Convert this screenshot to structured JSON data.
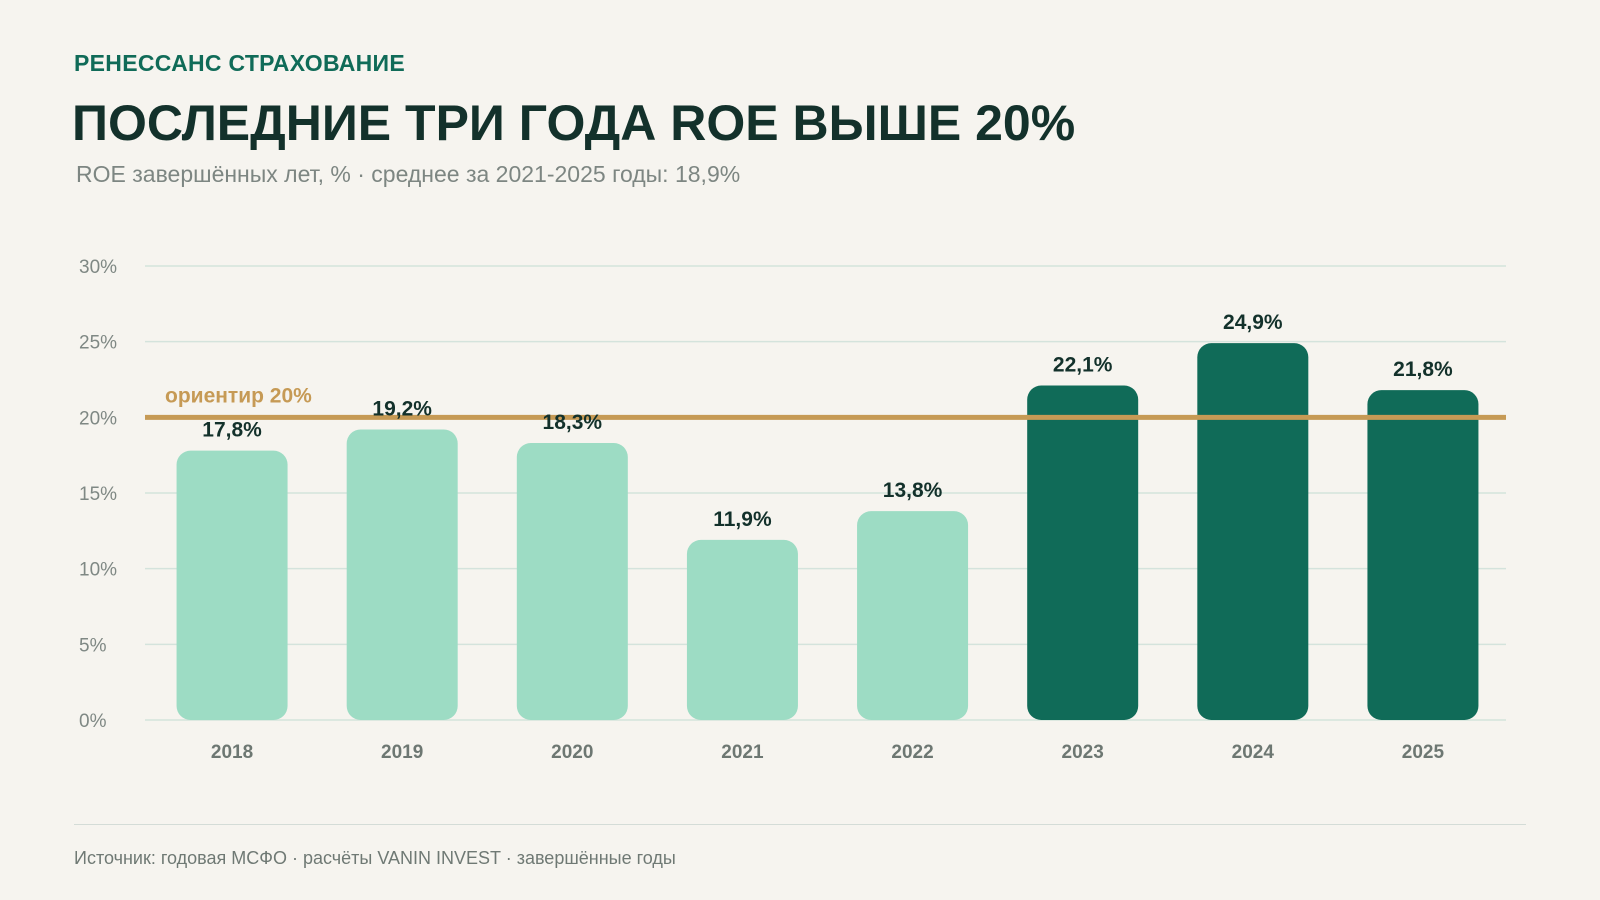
{
  "header": {
    "brand": "РЕНЕССАНС СТРАХОВАНИЕ",
    "title": "ПОСЛЕДНИЕ ТРИ ГОДА ROE ВЫШЕ 20%",
    "subtitle": "ROE завершённых лет, % · среднее за 2021-2025 годы: 18,9%"
  },
  "footer": {
    "source": "Источник: годовая МСФО · расчёты VANIN INVEST · завершённые годы"
  },
  "colors": {
    "background": "#f6f4ef",
    "bar_light": "#9ddcc4",
    "bar_dark": "#106b58",
    "benchmark": "#c69a55",
    "grid": "#d4e3dc",
    "axis_text": "#7f8884",
    "label_text": "#13312b"
  },
  "chart_data": {
    "type": "bar",
    "categories": [
      "2018",
      "2019",
      "2020",
      "2021",
      "2022",
      "2023",
      "2024",
      "2025"
    ],
    "values": [
      17.8,
      19.2,
      18.3,
      11.9,
      13.8,
      22.1,
      24.9,
      21.8
    ],
    "value_labels": [
      "17,8%",
      "19,2%",
      "18,3%",
      "11,9%",
      "13,8%",
      "22,1%",
      "24,9%",
      "21,8%"
    ],
    "highlight": [
      false,
      false,
      false,
      false,
      false,
      true,
      true,
      true
    ],
    "ylim": [
      0,
      30
    ],
    "yticks": [
      0,
      5,
      10,
      15,
      20,
      25,
      30
    ],
    "ytick_labels": [
      "0%",
      "5%",
      "10%",
      "15%",
      "20%",
      "25%",
      "30%"
    ],
    "grid": true,
    "benchmark": {
      "value": 20,
      "label": "ориентир 20%"
    }
  }
}
